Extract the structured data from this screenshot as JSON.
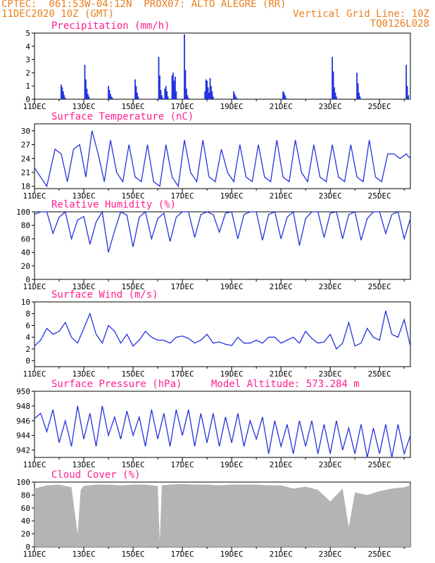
{
  "header": {
    "line1": "CPTEC:  061:53W-04:12N  PROX07: ALTO ALEGRE (RR)",
    "line2_left": "11DEC2020 10Z (GMT)",
    "line2_right": "Vertical Grid Line: 10Z",
    "line3_right": "TQ0126L028"
  },
  "colors": {
    "header": "#e87f1e",
    "title": "#ff1f8e",
    "line": "#2233dd",
    "bars": "#2233dd",
    "cloud": "#b4b4b4"
  },
  "chart_data": [
    {
      "type": "bar",
      "title": "Precipitation (mm/h)",
      "ylim": [
        0,
        5
      ],
      "yticks": [
        0,
        1,
        2,
        3,
        4,
        5
      ],
      "xticks": [
        "11DEC",
        "13DEC",
        "15DEC",
        "17DEC",
        "19DEC",
        "21DEC",
        "23DEC",
        "25DEC"
      ],
      "x_hours": [
        26,
        27,
        28,
        29,
        30,
        49,
        50,
        51,
        52,
        53,
        72,
        73,
        74,
        75,
        76,
        98,
        99,
        100,
        101,
        121,
        122,
        123,
        124,
        125,
        127,
        128,
        129,
        130,
        134,
        135,
        136,
        137,
        138,
        146,
        147,
        148,
        149,
        150,
        166,
        167,
        168,
        169,
        170,
        171,
        172,
        173,
        174,
        194,
        195,
        196,
        197,
        242,
        243,
        244,
        245,
        290,
        291,
        292,
        293,
        294,
        314,
        315,
        316,
        317,
        362,
        363,
        364
      ],
      "values": [
        1.1,
        0.9,
        0.6,
        0.3,
        0.1,
        2.6,
        1.5,
        0.8,
        0.4,
        0.2,
        1.0,
        0.7,
        0.4,
        0.2,
        0.1,
        1.5,
        1.0,
        0.5,
        0.2,
        3.2,
        1.8,
        0.7,
        0.3,
        0.1,
        0.8,
        1.0,
        0.6,
        0.2,
        1.8,
        2.0,
        1.4,
        1.7,
        0.6,
        4.9,
        2.2,
        0.8,
        0.3,
        0.1,
        0.6,
        1.5,
        1.4,
        0.9,
        0.5,
        1.6,
        1.0,
        0.6,
        0.2,
        0.6,
        0.4,
        0.2,
        0.1,
        0.6,
        0.5,
        0.3,
        0.1,
        3.2,
        2.1,
        0.9,
        0.5,
        0.2,
        2.0,
        1.2,
        0.5,
        0.2,
        2.6,
        1.0,
        0.3
      ]
    },
    {
      "type": "line",
      "title": "Surface Temperature (nC)",
      "ylim": [
        17.5,
        31.5
      ],
      "yticks": [
        18,
        21,
        24,
        27,
        30
      ],
      "xticks": [
        "11DEC",
        "13DEC",
        "15DEC",
        "17DEC",
        "19DEC",
        "21DEC",
        "23DEC",
        "25DEC"
      ],
      "x_hours": [
        0,
        6,
        12,
        20,
        26,
        32,
        38,
        44,
        50,
        56,
        62,
        68,
        74,
        80,
        86,
        92,
        98,
        104,
        110,
        116,
        122,
        128,
        134,
        140,
        146,
        152,
        158,
        164,
        170,
        176,
        182,
        188,
        194,
        200,
        206,
        212,
        218,
        224,
        230,
        236,
        242,
        248,
        254,
        260,
        266,
        272,
        278,
        284,
        290,
        296,
        302,
        308,
        314,
        320,
        326,
        332,
        338,
        344,
        350,
        356,
        362,
        366
      ],
      "values": [
        22,
        20,
        18,
        26,
        25,
        19,
        26,
        27,
        20,
        30,
        25,
        19,
        28,
        21,
        19,
        27,
        20,
        19,
        27,
        19,
        18,
        27,
        20,
        18,
        28,
        21,
        19,
        28,
        20,
        19,
        26,
        21,
        19,
        27,
        20,
        19,
        27,
        20,
        19,
        28,
        20,
        19,
        28,
        21,
        19,
        27,
        20,
        19,
        27,
        20,
        19,
        27,
        20,
        19,
        28,
        20,
        19,
        25,
        25,
        24,
        25,
        24
      ]
    },
    {
      "type": "line",
      "title": "Relative Humidity (%)",
      "ylim": [
        0,
        100
      ],
      "yticks": [
        0,
        20,
        40,
        60,
        80,
        100
      ],
      "xticks": [
        "11DEC",
        "13DEC",
        "15DEC",
        "17DEC",
        "19DEC",
        "21DEC",
        "23DEC",
        "25DEC"
      ],
      "x_hours": [
        0,
        6,
        12,
        18,
        24,
        30,
        36,
        42,
        48,
        54,
        60,
        66,
        72,
        78,
        84,
        90,
        96,
        102,
        108,
        114,
        120,
        126,
        132,
        138,
        144,
        150,
        156,
        162,
        168,
        174,
        180,
        186,
        192,
        198,
        204,
        210,
        216,
        222,
        228,
        234,
        240,
        246,
        252,
        258,
        264,
        270,
        276,
        282,
        288,
        294,
        300,
        306,
        312,
        318,
        324,
        330,
        336,
        342,
        348,
        354,
        360,
        366
      ],
      "values": [
        96,
        100,
        100,
        68,
        92,
        100,
        60,
        88,
        93,
        52,
        85,
        100,
        40,
        72,
        100,
        95,
        48,
        92,
        100,
        60,
        90,
        98,
        56,
        92,
        100,
        100,
        62,
        96,
        100,
        96,
        70,
        98,
        100,
        60,
        96,
        100,
        100,
        58,
        96,
        100,
        60,
        92,
        100,
        50,
        90,
        100,
        100,
        62,
        98,
        100,
        60,
        96,
        100,
        58,
        90,
        100,
        100,
        68,
        96,
        100,
        60,
        90
      ]
    },
    {
      "type": "line",
      "title": "Surface Wind (m/s)",
      "ylim": [
        -1,
        10
      ],
      "yticks": [
        0,
        2,
        4,
        6,
        8,
        10
      ],
      "xticks": [
        "11DEC",
        "13DEC",
        "15DEC",
        "17DEC",
        "19DEC",
        "21DEC",
        "23DEC",
        "25DEC"
      ],
      "x_hours": [
        0,
        6,
        12,
        18,
        24,
        30,
        36,
        42,
        48,
        54,
        60,
        66,
        72,
        78,
        84,
        90,
        96,
        102,
        108,
        114,
        120,
        126,
        132,
        138,
        144,
        150,
        156,
        162,
        168,
        174,
        180,
        186,
        192,
        198,
        204,
        210,
        216,
        222,
        228,
        234,
        240,
        246,
        252,
        258,
        264,
        270,
        276,
        282,
        288,
        294,
        300,
        306,
        312,
        318,
        324,
        330,
        336,
        342,
        348,
        354,
        360,
        366
      ],
      "values": [
        2.5,
        3.5,
        5.5,
        4.5,
        5.0,
        6.5,
        4.0,
        3.0,
        5.5,
        8.0,
        4.5,
        3.0,
        6.0,
        5.0,
        3.0,
        4.5,
        2.5,
        3.5,
        5.0,
        4.0,
        3.5,
        3.5,
        3.0,
        4.0,
        4.2,
        3.8,
        3.0,
        3.5,
        4.5,
        3.0,
        3.2,
        2.8,
        2.6,
        4.0,
        3.0,
        3.0,
        3.5,
        3.0,
        4.0,
        4.0,
        3.0,
        3.5,
        4.0,
        3.0,
        5.0,
        3.8,
        3.0,
        3.2,
        4.5,
        2.0,
        3.0,
        6.5,
        2.5,
        3.0,
        5.5,
        4.0,
        3.5,
        8.5,
        4.5,
        4.0,
        7.0,
        2.5
      ]
    },
    {
      "type": "line",
      "title": "Surface Pressure (hPa)",
      "annotation": "Model Altitude: 573.284  m",
      "ylim": [
        941,
        950
      ],
      "yticks": [
        942,
        944,
        946,
        948,
        950
      ],
      "xticks": [
        "11DEC",
        "13DEC",
        "15DEC",
        "17DEC",
        "19DEC",
        "21DEC",
        "23DEC",
        "25DEC"
      ],
      "x_hours": [
        0,
        6,
        12,
        18,
        24,
        30,
        36,
        42,
        48,
        54,
        60,
        66,
        72,
        78,
        84,
        90,
        96,
        102,
        108,
        114,
        120,
        126,
        132,
        138,
        144,
        150,
        156,
        162,
        168,
        174,
        180,
        186,
        192,
        198,
        204,
        210,
        216,
        222,
        228,
        234,
        240,
        246,
        252,
        258,
        264,
        270,
        276,
        282,
        288,
        294,
        300,
        306,
        312,
        318,
        324,
        330,
        336,
        342,
        348,
        354,
        360,
        366
      ],
      "values": [
        946.3,
        947.0,
        944.5,
        947.5,
        943.0,
        946.0,
        942.5,
        948.0,
        943.5,
        947.0,
        942.5,
        948.0,
        944.0,
        946.5,
        943.5,
        947.3,
        944.0,
        946.5,
        942.5,
        947.5,
        943.5,
        947.0,
        942.5,
        947.5,
        944.0,
        947.5,
        942.5,
        947.0,
        943.0,
        947.0,
        942.5,
        946.5,
        943.0,
        947.0,
        942.5,
        946.0,
        943.5,
        946.5,
        941.5,
        946.0,
        942.5,
        945.5,
        941.5,
        946.0,
        942.5,
        946.0,
        941.5,
        945.5,
        941.5,
        946.0,
        942.0,
        945.0,
        941.5,
        945.5,
        941.0,
        945.0,
        941.5,
        945.5,
        941.0,
        945.5,
        941.5,
        944.0
      ]
    },
    {
      "type": "area",
      "title": "Cloud Cover (%)",
      "ylim": [
        0,
        100
      ],
      "yticks": [
        0,
        20,
        40,
        60,
        80,
        100
      ],
      "xticks": [
        "11DEC",
        "13DEC",
        "15DEC",
        "17DEC",
        "19DEC",
        "21DEC",
        "23DEC",
        "25DEC"
      ],
      "x_hours": [
        0,
        12,
        24,
        36,
        42,
        45,
        48,
        60,
        72,
        84,
        96,
        108,
        120,
        122,
        124,
        132,
        144,
        156,
        168,
        180,
        192,
        204,
        216,
        228,
        240,
        252,
        264,
        276,
        288,
        300,
        306,
        312,
        324,
        336,
        348,
        360,
        366
      ],
      "values": [
        90,
        95,
        96,
        92,
        20,
        88,
        94,
        96,
        96,
        95,
        96,
        96,
        94,
        8,
        95,
        96,
        97,
        96,
        96,
        95,
        96,
        96,
        96,
        95,
        95,
        90,
        93,
        88,
        70,
        90,
        30,
        84,
        80,
        86,
        90,
        92,
        95
      ]
    }
  ]
}
